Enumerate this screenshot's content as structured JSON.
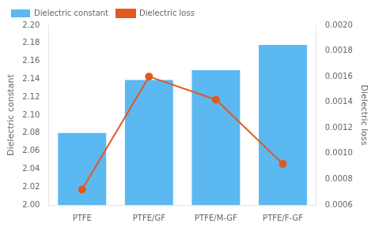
{
  "chart_data": {
    "type": "bar",
    "categories": [
      "PTFE",
      "PTFE/GF",
      "PTFE/M-GF",
      "PTFE/F-GF"
    ],
    "series": [
      {
        "name": "Dielectric constant",
        "type": "bar",
        "color": "#5BB8F0",
        "values": [
          2.08,
          2.139,
          2.15,
          2.178
        ]
      },
      {
        "name": "Dielectric loss",
        "type": "line",
        "axis": "y2",
        "color": "#E05A20",
        "marker": "circle",
        "values": [
          0.00072,
          0.0016,
          0.00142,
          0.00092
        ]
      }
    ],
    "ylabel": "Dielectric constant",
    "y2label": "Dielectric loss",
    "ylim": [
      2.0,
      2.2
    ],
    "yticks": [
      {
        "value": 2.0,
        "label": "2.00"
      },
      2.02,
      2.04,
      2.06,
      2.08,
      {
        "value": 2.1,
        "label": "2.10"
      },
      2.12,
      2.14,
      2.16,
      2.18,
      {
        "value": 2.2,
        "label": "2.20"
      }
    ],
    "y2lim": [
      0.0006,
      0.002
    ],
    "y2ticks": [
      0.0006,
      0.0008,
      {
        "value": 0.001,
        "label": "0.0010"
      },
      0.0012,
      0.0014,
      0.0016,
      0.0018,
      {
        "value": 0.002,
        "label": "0.0020"
      }
    ],
    "legend": "upper left",
    "grid": false
  }
}
